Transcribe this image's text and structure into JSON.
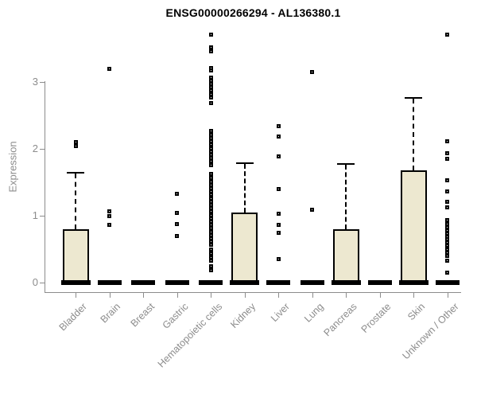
{
  "colors": {
    "box_fill": "#ede8d0",
    "box_border": "#000000",
    "median": "#000000",
    "axis": "#8c8c8c",
    "tick_text": "#8c8c8c",
    "title_text": "#000000"
  },
  "chart_data": {
    "type": "boxplot",
    "title": "ENSG00000266294 - AL136380.1",
    "ylabel": "Expression",
    "xlabel": "",
    "yticks": [
      0,
      1,
      2,
      3
    ],
    "ylim": [
      0,
      3.8
    ],
    "grid": false,
    "legend": "none",
    "categories": [
      "Bladder",
      "Brain",
      "Breast",
      "Gastric",
      "Hematopoietic cells",
      "Kidney",
      "Liver",
      "Lung",
      "Pancreas",
      "Prostate",
      "Skin",
      "Unknown / Other"
    ],
    "series": [
      {
        "category": "Bladder",
        "q1": 0,
        "median": 0,
        "q3": 0.8,
        "whisker_low": 0,
        "whisker_high": 1.65,
        "outliers": [
          2.1,
          2.04
        ]
      },
      {
        "category": "Brain",
        "q1": 0,
        "median": 0,
        "q3": 0,
        "whisker_low": 0,
        "whisker_high": 0,
        "outliers": [
          3.2,
          1.07,
          1.0,
          0.86
        ]
      },
      {
        "category": "Breast",
        "q1": 0,
        "median": 0,
        "q3": 0,
        "whisker_low": 0,
        "whisker_high": 0,
        "outliers": []
      },
      {
        "category": "Gastric",
        "q1": 0,
        "median": 0,
        "q3": 0,
        "whisker_low": 0,
        "whisker_high": 0,
        "outliers": [
          1.33,
          1.04,
          0.87,
          0.7
        ]
      },
      {
        "category": "Hematopoietic cells",
        "q1": 0,
        "median": 0,
        "q3": 0,
        "whisker_low": 0,
        "whisker_high": 0,
        "outliers": [
          3.71,
          3.52,
          3.46,
          3.21,
          3.17,
          3.07,
          3.02,
          2.97,
          2.92,
          2.87,
          2.82,
          2.77,
          2.68,
          2.27,
          2.21,
          2.16,
          2.11,
          2.06,
          2.01,
          1.96,
          1.91,
          1.86,
          1.81,
          1.76,
          1.63,
          1.57,
          1.51,
          1.46,
          1.41,
          1.36,
          1.31,
          1.26,
          1.21,
          1.16,
          1.11,
          1.06,
          1.01,
          0.96,
          0.91,
          0.86,
          0.81,
          0.76,
          0.71,
          0.66,
          0.61,
          0.56,
          0.5,
          0.44,
          0.38,
          0.33,
          0.24,
          0.18
        ]
      },
      {
        "category": "Kidney",
        "q1": 0,
        "median": 0,
        "q3": 1.05,
        "whisker_low": 0,
        "whisker_high": 1.8,
        "outliers": []
      },
      {
        "category": "Liver",
        "q1": 0,
        "median": 0,
        "q3": 0,
        "whisker_low": 0,
        "whisker_high": 0,
        "outliers": [
          2.34,
          2.18,
          1.89,
          1.4,
          1.03,
          0.86,
          0.74,
          0.35
        ]
      },
      {
        "category": "Lung",
        "q1": 0,
        "median": 0,
        "q3": 0,
        "whisker_low": 0,
        "whisker_high": 0,
        "outliers": [
          3.15,
          1.09
        ]
      },
      {
        "category": "Pancreas",
        "q1": 0,
        "median": 0,
        "q3": 0.8,
        "whisker_low": 0,
        "whisker_high": 1.78,
        "outliers": []
      },
      {
        "category": "Prostate",
        "q1": 0,
        "median": 0,
        "q3": 0,
        "whisker_low": 0,
        "whisker_high": 0,
        "outliers": []
      },
      {
        "category": "Skin",
        "q1": 0,
        "median": 0,
        "q3": 1.68,
        "whisker_low": 0,
        "whisker_high": 2.77,
        "outliers": []
      },
      {
        "category": "Unknown / Other",
        "q1": 0,
        "median": 0,
        "q3": 0,
        "whisker_low": 0,
        "whisker_high": 0,
        "outliers": [
          3.71,
          2.11,
          1.94,
          1.85,
          1.53,
          1.36,
          1.21,
          1.12,
          0.93,
          0.88,
          0.83,
          0.78,
          0.73,
          0.69,
          0.65,
          0.6,
          0.55,
          0.5,
          0.45,
          0.4,
          0.33,
          0.15
        ]
      }
    ]
  }
}
